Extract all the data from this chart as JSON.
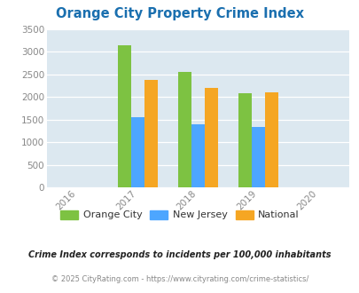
{
  "title": "Orange City Property Crime Index",
  "title_color": "#1a6faf",
  "years": [
    2017,
    2018,
    2019
  ],
  "x_ticks": [
    2016,
    2017,
    2018,
    2019,
    2020
  ],
  "orange_city": [
    3150,
    2560,
    2080
  ],
  "new_jersey": [
    1550,
    1400,
    1330
  ],
  "national": [
    2380,
    2200,
    2100
  ],
  "bar_colors": {
    "orange_city": "#7dc242",
    "new_jersey": "#4da6ff",
    "national": "#f5a623"
  },
  "ylim": [
    0,
    3500
  ],
  "yticks": [
    0,
    500,
    1000,
    1500,
    2000,
    2500,
    3000,
    3500
  ],
  "plot_area_color": "#dce8f0",
  "legend_labels": [
    "Orange City",
    "New Jersey",
    "National"
  ],
  "footer1": "Crime Index corresponds to incidents per 100,000 inhabitants",
  "footer2": "© 2025 CityRating.com - https://www.cityrating.com/crime-statistics/",
  "footer1_color": "#222222",
  "footer2_color": "#888888",
  "bar_width": 0.22
}
